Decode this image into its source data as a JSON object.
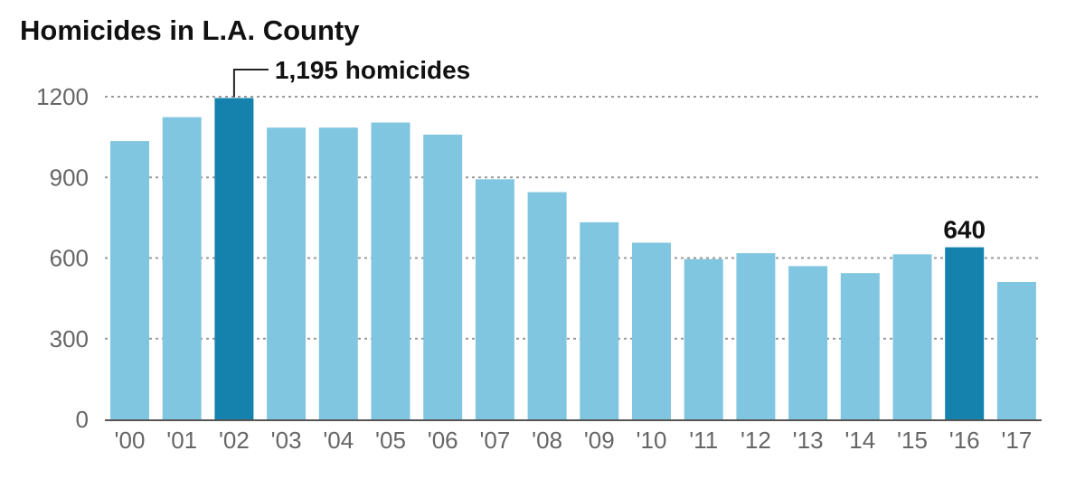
{
  "chart_data": {
    "type": "bar",
    "title": "Homicides in L.A. County",
    "xlabel": "",
    "ylabel": "",
    "categories": [
      "'00",
      "'01",
      "'02",
      "'03",
      "'04",
      "'05",
      "'06",
      "'07",
      "'08",
      "'09",
      "'10",
      "'11",
      "'12",
      "'13",
      "'14",
      "'15",
      "'16",
      "'17"
    ],
    "values": [
      1035,
      1124,
      1195,
      1085,
      1085,
      1104,
      1059,
      893,
      845,
      733,
      657,
      596,
      618,
      570,
      544,
      614,
      640,
      511
    ],
    "highlight_categories": [
      "'02",
      "'16"
    ],
    "ylim": [
      0,
      1200
    ],
    "yticks": [
      "0",
      "300",
      "600",
      "900",
      "1200"
    ],
    "grid": true,
    "legend": "none",
    "colors": {
      "bar": "#81c6e0",
      "highlight": "#1582ad",
      "grid": "#9a9a9a",
      "axis": "#555555"
    },
    "annotations": [
      {
        "category": "'02",
        "text": "1,195 homicides"
      },
      {
        "category": "'16",
        "text": "640"
      }
    ]
  }
}
